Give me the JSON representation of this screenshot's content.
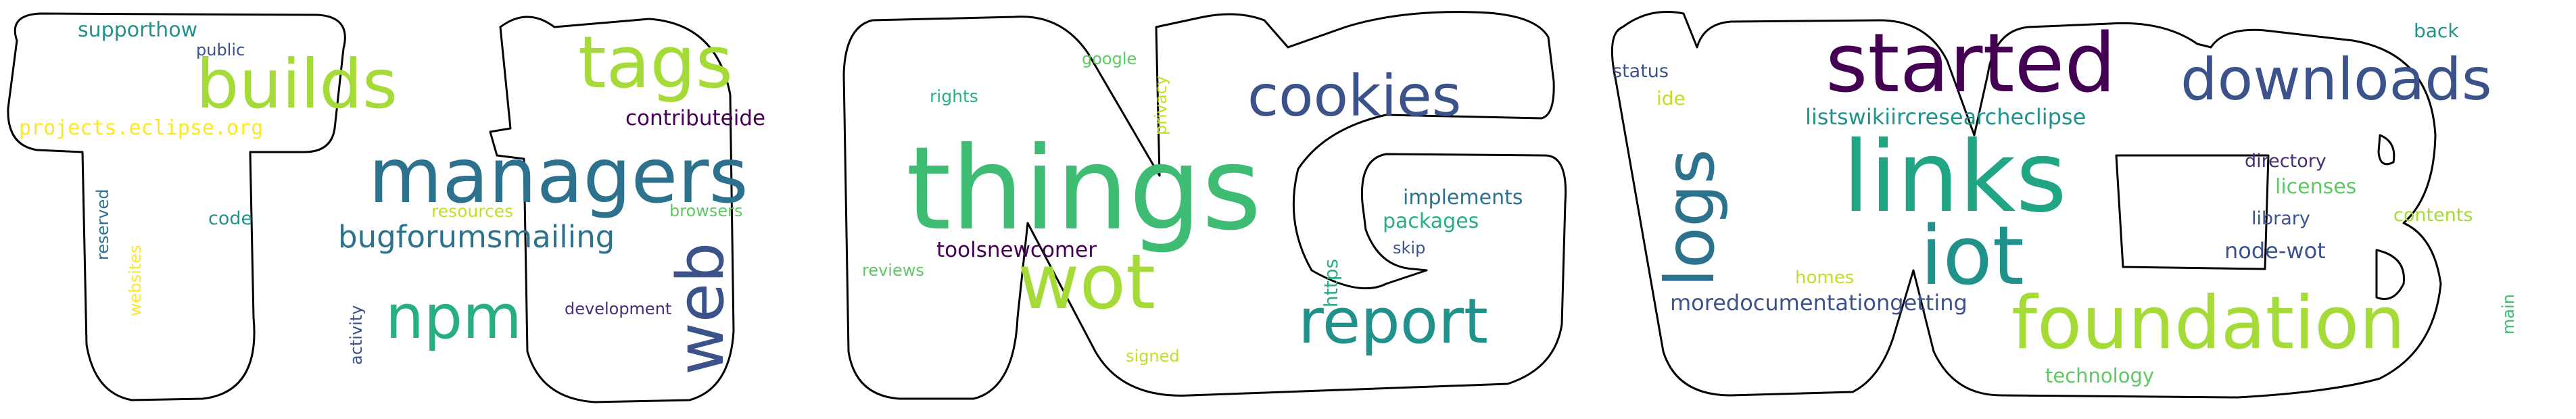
{
  "words": [
    {
      "key": "supporthow",
      "text": "supporthow",
      "color": "#21918c"
    },
    {
      "key": "public",
      "text": "public",
      "color": "#3b528b"
    },
    {
      "key": "builds",
      "text": "builds",
      "color": "#a5db36"
    },
    {
      "key": "tags",
      "text": "tags",
      "color": "#a5db36"
    },
    {
      "key": "projects_eclipse_org",
      "text": "projects.eclipse.org",
      "color": "#fde725"
    },
    {
      "key": "contributeide",
      "text": "contributeide",
      "color": "#440154"
    },
    {
      "key": "managers",
      "text": "managers",
      "color": "#2c728e"
    },
    {
      "key": "reserved",
      "text": "reserved",
      "color": "#2c728e"
    },
    {
      "key": "code",
      "text": "code",
      "color": "#21918c"
    },
    {
      "key": "resources",
      "text": "resources",
      "color": "#c2df23"
    },
    {
      "key": "browsers",
      "text": "browsers",
      "color": "#5ec962"
    },
    {
      "key": "bugforumsmailing",
      "text": "bugforumsmailing",
      "color": "#2c728e"
    },
    {
      "key": "websites",
      "text": "websites",
      "color": "#fde725"
    },
    {
      "key": "activity",
      "text": "activity",
      "color": "#3b528b"
    },
    {
      "key": "npm",
      "text": "npm",
      "color": "#28ae80"
    },
    {
      "key": "development",
      "text": "development",
      "color": "#472c7a"
    },
    {
      "key": "web",
      "text": "web",
      "color": "#3b528b"
    },
    {
      "key": "google",
      "text": "google",
      "color": "#5ec962"
    },
    {
      "key": "rights",
      "text": "rights",
      "color": "#28ae80"
    },
    {
      "key": "privacy",
      "text": "privacy",
      "color": "#c2df23"
    },
    {
      "key": "cookies",
      "text": "cookies",
      "color": "#3b528b"
    },
    {
      "key": "things",
      "text": "things",
      "color": "#3fbc73"
    },
    {
      "key": "implements",
      "text": "implements",
      "color": "#2c728e"
    },
    {
      "key": "packages",
      "text": "packages",
      "color": "#28ae80"
    },
    {
      "key": "skip",
      "text": "skip",
      "color": "#3b528b"
    },
    {
      "key": "https",
      "text": "https",
      "color": "#28ae80"
    },
    {
      "key": "reviews",
      "text": "reviews",
      "color": "#5ec962"
    },
    {
      "key": "toolsnewcomer",
      "text": "toolsnewcomer",
      "color": "#440154"
    },
    {
      "key": "wot",
      "text": "wot",
      "color": "#a5db36"
    },
    {
      "key": "report",
      "text": "report",
      "color": "#21918c"
    },
    {
      "key": "signed",
      "text": "signed",
      "color": "#c2df23"
    },
    {
      "key": "status",
      "text": "status",
      "color": "#3b528b"
    },
    {
      "key": "started",
      "text": "started",
      "color": "#440154"
    },
    {
      "key": "downloads",
      "text": "downloads",
      "color": "#3b528b"
    },
    {
      "key": "back",
      "text": "back",
      "color": "#21918c"
    },
    {
      "key": "ide",
      "text": "ide",
      "color": "#c2df23"
    },
    {
      "key": "logs",
      "text": "logs",
      "color": "#2c728e"
    },
    {
      "key": "listswikiircresearcheclipse",
      "text": "listswikiircresearcheclipse",
      "color": "#21918c"
    },
    {
      "key": "links",
      "text": "links",
      "color": "#21a685"
    },
    {
      "key": "directory",
      "text": "directory",
      "color": "#472c7a"
    },
    {
      "key": "licenses",
      "text": "licenses",
      "color": "#5ec962"
    },
    {
      "key": "library",
      "text": "library",
      "color": "#3b528b"
    },
    {
      "key": "contents",
      "text": "contents",
      "color": "#a5db36"
    },
    {
      "key": "iot",
      "text": "iot",
      "color": "#21918c"
    },
    {
      "key": "node_wot",
      "text": "node-wot",
      "color": "#3b528b"
    },
    {
      "key": "homes",
      "text": "homes",
      "color": "#c2df23"
    },
    {
      "key": "moredocumentationgetting",
      "text": "moredocumentationgetting",
      "color": "#3b528b"
    },
    {
      "key": "foundation",
      "text": "foundation",
      "color": "#a5db36"
    },
    {
      "key": "technology",
      "text": "technology",
      "color": "#5ec962"
    },
    {
      "key": "main",
      "text": "main",
      "color": "#3fbc73"
    }
  ]
}
